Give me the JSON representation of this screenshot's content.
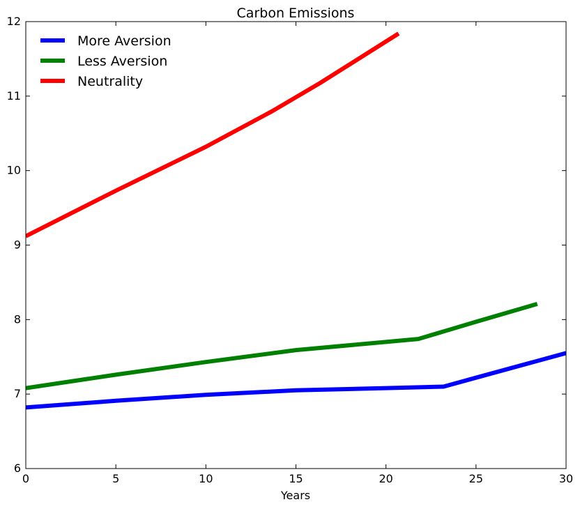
{
  "chart_data": {
    "type": "line",
    "title": "Carbon Emissions",
    "xlabel": "Years",
    "ylabel": "",
    "xlim": [
      0,
      30
    ],
    "ylim": [
      6,
      12
    ],
    "xticks": [
      0,
      5,
      10,
      15,
      20,
      25,
      30
    ],
    "yticks": [
      6,
      7,
      8,
      9,
      10,
      11,
      12
    ],
    "grid": false,
    "legend_position": "top-left",
    "series": [
      {
        "name": "More Aversion",
        "color": "#0000ff",
        "x": [
          0,
          5,
          10,
          15,
          20,
          23.2,
          25,
          30
        ],
        "y": [
          6.82,
          6.91,
          6.99,
          7.05,
          7.08,
          7.1,
          7.22,
          7.55
        ]
      },
      {
        "name": "Less Aversion",
        "color": "#008000",
        "x": [
          0,
          5,
          10,
          15,
          20,
          21.8,
          25,
          28.4
        ],
        "y": [
          7.08,
          7.26,
          7.43,
          7.59,
          7.7,
          7.74,
          7.97,
          8.21
        ]
      },
      {
        "name": "Neutrality",
        "color": "#ff0000",
        "x": [
          0,
          5,
          10,
          13.7,
          16.3,
          20.7
        ],
        "y": [
          9.12,
          9.73,
          10.32,
          10.8,
          11.17,
          11.84
        ]
      }
    ]
  }
}
